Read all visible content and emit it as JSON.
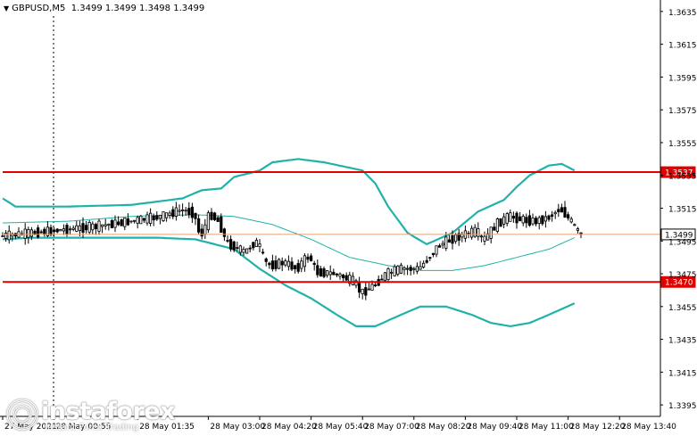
{
  "header": {
    "symbol": "GBPUSD,M5",
    "ohlc": "1.3499 1.3499 1.3498 1.3499"
  },
  "logo": {
    "brand": "instaforex",
    "tagline": "Instant Forex Trading"
  },
  "colors": {
    "background": "#ffffff",
    "bollinger": "#20b2aa",
    "support_resistance": "#e00000",
    "current_price_line": "#e8a070",
    "candle": "#000000",
    "axis_text": "#000000",
    "grid": "#d8d8d8"
  },
  "chart_data": {
    "type": "candlestick",
    "symbol": "GBPUSD",
    "timeframe": "M5",
    "y_axis": {
      "min": 1.3388,
      "max": 1.3642,
      "ticks": [
        1.3635,
        1.3615,
        1.3595,
        1.3575,
        1.3555,
        1.3535,
        1.3515,
        1.3495,
        1.3475,
        1.3455,
        1.3435,
        1.3415,
        1.3395
      ],
      "tick_labels": [
        "1.3635",
        "1.3615",
        "1.3595",
        "1.3575",
        "1.3555",
        "1.3535",
        "1.3515",
        "1.3495",
        "1.3475",
        "1.3455",
        "1.3435",
        "1.3415",
        "1.3395"
      ]
    },
    "x_axis": {
      "bar_count": 205,
      "tick_labels": [
        "27 May 2021",
        "28 May 00:55",
        "28 May 01:35",
        "28 May 03:00",
        "28 May 04:20",
        "28 May 05:40",
        "28 May 07:00",
        "28 May 08:20",
        "28 May 09:40",
        "28 May 11:00",
        "28 May 12:20",
        "28 May 13:40"
      ],
      "tick_bars": [
        0,
        16,
        42,
        64,
        80,
        96,
        112,
        128,
        144,
        160,
        176,
        192
      ]
    },
    "horizontal_levels": [
      {
        "value": 1.3537,
        "label": "1.3537",
        "style": "support_resistance"
      },
      {
        "value": 1.347,
        "label": "1.3470",
        "style": "support_resistance"
      },
      {
        "value": 1.3499,
        "label": "1.3499",
        "style": "current_price"
      }
    ],
    "current_price": 1.3499,
    "price_path": [
      [
        0,
        1.3498
      ],
      [
        10,
        1.35
      ],
      [
        20,
        1.3502
      ],
      [
        30,
        1.3504
      ],
      [
        40,
        1.3507
      ],
      [
        50,
        1.351
      ],
      [
        56,
        1.3514
      ],
      [
        60,
        1.3512
      ],
      [
        62,
        1.3497
      ],
      [
        65,
        1.3512
      ],
      [
        68,
        1.3506
      ],
      [
        70,
        1.3494
      ],
      [
        72,
        1.3492
      ],
      [
        76,
        1.3488
      ],
      [
        78,
        1.3493
      ],
      [
        80,
        1.3494
      ],
      [
        82,
        1.3482
      ],
      [
        84,
        1.348
      ],
      [
        88,
        1.3482
      ],
      [
        92,
        1.3478
      ],
      [
        94,
        1.3483
      ],
      [
        96,
        1.3486
      ],
      [
        98,
        1.3476
      ],
      [
        104,
        1.3475
      ],
      [
        110,
        1.347
      ],
      [
        112,
        1.3463
      ],
      [
        116,
        1.3468
      ],
      [
        120,
        1.3475
      ],
      [
        124,
        1.3478
      ],
      [
        130,
        1.3478
      ],
      [
        134,
        1.3487
      ],
      [
        136,
        1.3492
      ],
      [
        140,
        1.3496
      ],
      [
        144,
        1.3499
      ],
      [
        148,
        1.3501
      ],
      [
        150,
        1.3495
      ],
      [
        154,
        1.3505
      ],
      [
        158,
        1.351
      ],
      [
        162,
        1.3508
      ],
      [
        166,
        1.3507
      ],
      [
        170,
        1.3509
      ],
      [
        172,
        1.3512
      ],
      [
        174,
        1.3515
      ],
      [
        176,
        1.351
      ],
      [
        178,
        1.3505
      ],
      [
        180,
        1.3499
      ]
    ],
    "bollinger_upper": [
      [
        0,
        1.3521
      ],
      [
        4,
        1.3516
      ],
      [
        20,
        1.3516
      ],
      [
        40,
        1.3517
      ],
      [
        56,
        1.3521
      ],
      [
        62,
        1.3526
      ],
      [
        68,
        1.3527
      ],
      [
        72,
        1.3534
      ],
      [
        80,
        1.3538
      ],
      [
        84,
        1.3543
      ],
      [
        92,
        1.3545
      ],
      [
        100,
        1.3543
      ],
      [
        112,
        1.3538
      ],
      [
        116,
        1.353
      ],
      [
        120,
        1.3516
      ],
      [
        126,
        1.35
      ],
      [
        132,
        1.3493
      ],
      [
        140,
        1.35
      ],
      [
        148,
        1.3513
      ],
      [
        156,
        1.352
      ],
      [
        160,
        1.3528
      ],
      [
        164,
        1.3535
      ],
      [
        170,
        1.3541
      ],
      [
        174,
        1.3542
      ],
      [
        178,
        1.3538
      ]
    ],
    "bollinger_middle": [
      [
        0,
        1.3506
      ],
      [
        20,
        1.3507
      ],
      [
        40,
        1.351
      ],
      [
        60,
        1.3511
      ],
      [
        72,
        1.351
      ],
      [
        84,
        1.3505
      ],
      [
        96,
        1.3496
      ],
      [
        108,
        1.3485
      ],
      [
        120,
        1.348
      ],
      [
        130,
        1.3477
      ],
      [
        140,
        1.3477
      ],
      [
        150,
        1.348
      ],
      [
        160,
        1.3485
      ],
      [
        170,
        1.349
      ],
      [
        178,
        1.3497
      ]
    ],
    "bollinger_lower": [
      [
        0,
        1.3496
      ],
      [
        8,
        1.3497
      ],
      [
        30,
        1.3497
      ],
      [
        48,
        1.3497
      ],
      [
        60,
        1.3496
      ],
      [
        72,
        1.349
      ],
      [
        80,
        1.3478
      ],
      [
        88,
        1.3468
      ],
      [
        96,
        1.346
      ],
      [
        104,
        1.345
      ],
      [
        110,
        1.3443
      ],
      [
        116,
        1.3443
      ],
      [
        124,
        1.345
      ],
      [
        130,
        1.3455
      ],
      [
        138,
        1.3455
      ],
      [
        146,
        1.345
      ],
      [
        152,
        1.3445
      ],
      [
        158,
        1.3443
      ],
      [
        164,
        1.3445
      ],
      [
        170,
        1.345
      ],
      [
        178,
        1.3457
      ]
    ]
  }
}
